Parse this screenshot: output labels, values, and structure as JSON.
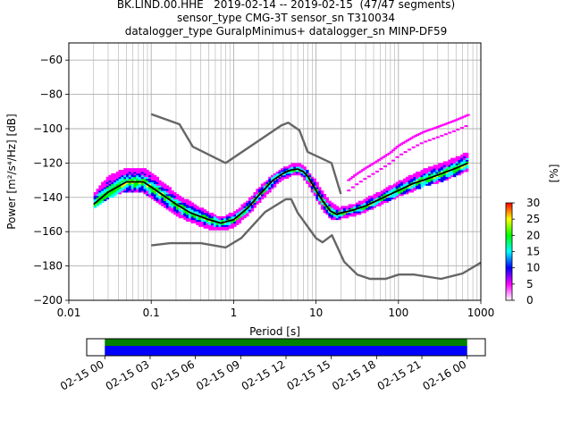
{
  "header": {
    "title_line1": "BK.LIND.00.HHE   2019-02-14 -- 2019-02-15  (47/47 segments)",
    "title_line2": "sensor_type CMG-3T sensor_sn T310034",
    "title_line3": "datalogger_type GuralpMinimus+ datalogger_sn MINP-DF59"
  },
  "chart_data": [
    {
      "type": "heatmap",
      "subtype": "probabilistic power spectral density",
      "xlabel": "Period [s]",
      "ylabel": "Power [m²/s⁴/Hz] [dB]",
      "xscale": "log",
      "xlim": [
        0.01,
        1000
      ],
      "ylim": [
        -200,
        -50
      ],
      "x_ticks": [
        "0.01",
        "0.1",
        "1",
        "10",
        "100",
        "1000"
      ],
      "y_ticks": [
        "-200",
        "-180",
        "-160",
        "-140",
        "-120",
        "-100",
        "-80",
        "-60"
      ],
      "grid": true,
      "colorbar": {
        "label": "[%]",
        "range": [
          0,
          30
        ],
        "ticks": [
          "0",
          "5",
          "10",
          "15",
          "20",
          "25",
          "30"
        ],
        "colors": [
          "#ffffff",
          "#ff00ff",
          "#0000ff",
          "#00ffff",
          "#00ff00",
          "#ffff00",
          "#ff0000"
        ]
      },
      "series": [
        {
          "role": "NHNM",
          "color": "#666666",
          "x": [
            0.1,
            0.22,
            0.32,
            0.8,
            3.8,
            4.6,
            6.3,
            7.9,
            15.4,
            20
          ],
          "y": [
            -91.5,
            -97.4,
            -110.5,
            -120,
            -98,
            -96.5,
            -101,
            -113.5,
            -120,
            -138
          ]
        },
        {
          "role": "NLNM",
          "color": "#666666",
          "x": [
            0.1,
            0.17,
            0.4,
            0.8,
            1.24,
            2.4,
            4.3,
            5,
            6,
            10,
            12,
            15.6,
            21.9,
            31.6,
            45,
            70,
            101,
            154,
            328,
            600,
            1000
          ],
          "y": [
            -168,
            -166.7,
            -166.7,
            -169.2,
            -163.7,
            -148.6,
            -141.1,
            -141.1,
            -149,
            -163.8,
            -166.2,
            -162.1,
            -177.5,
            -185,
            -187.5,
            -187.5,
            -185,
            -185,
            -187.5,
            -184.4,
            -178
          ]
        },
        {
          "role": "mean",
          "color": "#000000",
          "x": [
            0.02,
            0.03,
            0.05,
            0.08,
            0.1,
            0.2,
            0.3,
            0.5,
            0.7,
            1,
            1.5,
            2,
            3,
            4,
            5,
            6,
            7,
            8,
            10,
            12,
            15,
            18,
            20,
            25,
            30,
            40,
            60,
            100,
            150,
            200,
            300,
            500,
            700
          ],
          "y": [
            -144,
            -137,
            -131,
            -131,
            -134,
            -144,
            -149,
            -153,
            -155,
            -153,
            -146,
            -139,
            -130,
            -126,
            -124,
            -123.5,
            -125,
            -128,
            -136,
            -142,
            -148,
            -150,
            -149,
            -148,
            -147,
            -145,
            -141,
            -136,
            -132,
            -130,
            -127,
            -123,
            -120
          ]
        },
        {
          "role": "density-band",
          "lower": [
            -146,
            -140,
            -136,
            -137,
            -140,
            -150,
            -154,
            -158,
            -159,
            -157,
            -150,
            -143,
            -134,
            -129,
            -127,
            -126,
            -128,
            -132,
            -140,
            -147,
            -152,
            -153,
            -152,
            -151,
            -150,
            -148,
            -144,
            -139,
            -136,
            -133,
            -131,
            -127,
            -124
          ],
          "upper": [
            -138,
            -128,
            -123,
            -123,
            -126,
            -138,
            -143,
            -149,
            -152,
            -149,
            -142,
            -135,
            -127,
            -123,
            -121,
            -120.5,
            -122,
            -125,
            -131,
            -137,
            -143,
            -146,
            -146,
            -145,
            -144,
            -141,
            -137,
            -131,
            -127,
            -124,
            -121,
            -117,
            -114
          ]
        },
        {
          "role": "outliers",
          "color": "#ff00ff",
          "x": [
            25,
            30,
            40,
            55,
            80,
            100,
            150,
            200,
            300,
            500,
            700
          ],
          "y": [
            -130,
            -127,
            -123,
            -119,
            -114,
            -110,
            -105,
            -102,
            -99,
            -95,
            -92
          ]
        }
      ]
    },
    {
      "type": "timeline",
      "tick_labels": [
        "02-15 00",
        "02-15 03",
        "02-15 06",
        "02-15 09",
        "02-15 12",
        "02-15 15",
        "02-15 18",
        "02-15 21",
        "02-16 00"
      ],
      "xlim_hours": [
        -1.2,
        25.2
      ],
      "bars": [
        {
          "role": "data coverage",
          "color": "#008000",
          "from_hour": 0,
          "to_hour": 24
        },
        {
          "role": "used segments",
          "color": "#0000ff",
          "from_hour": 0,
          "to_hour": 24
        }
      ]
    }
  ]
}
